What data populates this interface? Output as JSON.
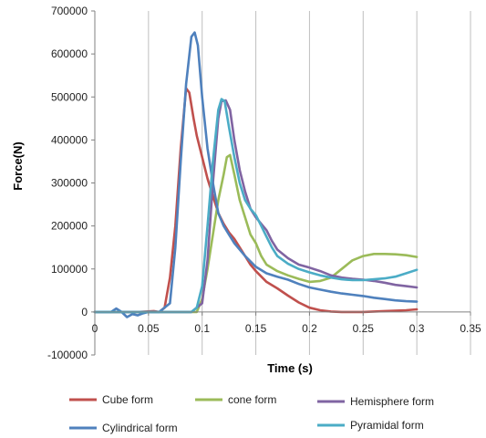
{
  "chart_data": {
    "type": "line",
    "title": "",
    "xlabel": "Time (s)",
    "ylabel": "Force(N)",
    "xlim": [
      0,
      0.35
    ],
    "ylim": [
      -100000,
      700000
    ],
    "x_ticks": [
      0,
      0.05,
      0.1,
      0.15,
      0.2,
      0.25,
      0.3,
      0.35
    ],
    "x_tick_labels": [
      "0",
      "0.05",
      "0.1",
      "0.15",
      "0.2",
      "0.25",
      "0.3",
      "0.35"
    ],
    "y_ticks": [
      -100000,
      0,
      100000,
      200000,
      300000,
      400000,
      500000,
      600000,
      700000
    ],
    "y_tick_labels": [
      "-100000",
      "0",
      "100000",
      "200000",
      "300000",
      "400000",
      "500000",
      "600000",
      "700000"
    ],
    "grid": {
      "vertical": true,
      "horizontal": false
    },
    "legend_position": "bottom",
    "series": [
      {
        "name": "Cube form",
        "color": "#c0504d",
        "points": [
          [
            0,
            0
          ],
          [
            0.04,
            0
          ],
          [
            0.055,
            2000
          ],
          [
            0.06,
            0
          ],
          [
            0.065,
            10000
          ],
          [
            0.07,
            80000
          ],
          [
            0.075,
            200000
          ],
          [
            0.08,
            380000
          ],
          [
            0.085,
            520000
          ],
          [
            0.088,
            510000
          ],
          [
            0.092,
            450000
          ],
          [
            0.095,
            410000
          ],
          [
            0.1,
            360000
          ],
          [
            0.105,
            310000
          ],
          [
            0.11,
            270000
          ],
          [
            0.115,
            230000
          ],
          [
            0.12,
            205000
          ],
          [
            0.125,
            185000
          ],
          [
            0.13,
            170000
          ],
          [
            0.135,
            150000
          ],
          [
            0.14,
            130000
          ],
          [
            0.145,
            110000
          ],
          [
            0.15,
            95000
          ],
          [
            0.16,
            70000
          ],
          [
            0.17,
            55000
          ],
          [
            0.18,
            38000
          ],
          [
            0.19,
            22000
          ],
          [
            0.2,
            10000
          ],
          [
            0.21,
            4000
          ],
          [
            0.22,
            1000
          ],
          [
            0.23,
            0
          ],
          [
            0.25,
            0
          ],
          [
            0.27,
            2000
          ],
          [
            0.29,
            4000
          ],
          [
            0.3,
            6000
          ]
        ]
      },
      {
        "name": "cone form",
        "color": "#9bbb59",
        "points": [
          [
            0,
            0
          ],
          [
            0.05,
            0
          ],
          [
            0.08,
            0
          ],
          [
            0.095,
            0
          ],
          [
            0.1,
            30000
          ],
          [
            0.105,
            100000
          ],
          [
            0.11,
            180000
          ],
          [
            0.115,
            260000
          ],
          [
            0.12,
            320000
          ],
          [
            0.123,
            360000
          ],
          [
            0.126,
            365000
          ],
          [
            0.13,
            320000
          ],
          [
            0.135,
            260000
          ],
          [
            0.14,
            220000
          ],
          [
            0.145,
            180000
          ],
          [
            0.15,
            160000
          ],
          [
            0.155,
            130000
          ],
          [
            0.16,
            110000
          ],
          [
            0.17,
            95000
          ],
          [
            0.18,
            85000
          ],
          [
            0.19,
            77000
          ],
          [
            0.2,
            70000
          ],
          [
            0.21,
            72000
          ],
          [
            0.22,
            80000
          ],
          [
            0.23,
            100000
          ],
          [
            0.24,
            120000
          ],
          [
            0.25,
            130000
          ],
          [
            0.26,
            135000
          ],
          [
            0.27,
            135000
          ],
          [
            0.28,
            134000
          ],
          [
            0.29,
            132000
          ],
          [
            0.3,
            128000
          ]
        ]
      },
      {
        "name": "Hemisphere form",
        "color": "#8064a2",
        "points": [
          [
            0,
            0
          ],
          [
            0.05,
            0
          ],
          [
            0.09,
            0
          ],
          [
            0.1,
            20000
          ],
          [
            0.105,
            120000
          ],
          [
            0.11,
            300000
          ],
          [
            0.115,
            450000
          ],
          [
            0.118,
            490000
          ],
          [
            0.122,
            492000
          ],
          [
            0.126,
            470000
          ],
          [
            0.13,
            400000
          ],
          [
            0.135,
            330000
          ],
          [
            0.14,
            280000
          ],
          [
            0.145,
            240000
          ],
          [
            0.15,
            220000
          ],
          [
            0.155,
            205000
          ],
          [
            0.16,
            190000
          ],
          [
            0.165,
            165000
          ],
          [
            0.17,
            145000
          ],
          [
            0.18,
            125000
          ],
          [
            0.19,
            110000
          ],
          [
            0.2,
            103000
          ],
          [
            0.21,
            95000
          ],
          [
            0.22,
            85000
          ],
          [
            0.23,
            80000
          ],
          [
            0.24,
            77000
          ],
          [
            0.25,
            75000
          ],
          [
            0.26,
            72000
          ],
          [
            0.27,
            68000
          ],
          [
            0.28,
            63000
          ],
          [
            0.29,
            60000
          ],
          [
            0.3,
            57000
          ]
        ]
      },
      {
        "name": "Cylindrical form",
        "color": "#4f81bd",
        "points": [
          [
            0,
            0
          ],
          [
            0.015,
            0
          ],
          [
            0.02,
            8000
          ],
          [
            0.025,
            0
          ],
          [
            0.03,
            -12000
          ],
          [
            0.035,
            -5000
          ],
          [
            0.04,
            -8000
          ],
          [
            0.045,
            -3000
          ],
          [
            0.05,
            0
          ],
          [
            0.06,
            0
          ],
          [
            0.07,
            20000
          ],
          [
            0.075,
            150000
          ],
          [
            0.08,
            350000
          ],
          [
            0.085,
            530000
          ],
          [
            0.09,
            640000
          ],
          [
            0.093,
            650000
          ],
          [
            0.096,
            620000
          ],
          [
            0.1,
            500000
          ],
          [
            0.105,
            380000
          ],
          [
            0.11,
            300000
          ],
          [
            0.115,
            230000
          ],
          [
            0.12,
            200000
          ],
          [
            0.125,
            180000
          ],
          [
            0.13,
            160000
          ],
          [
            0.14,
            130000
          ],
          [
            0.15,
            105000
          ],
          [
            0.16,
            90000
          ],
          [
            0.17,
            82000
          ],
          [
            0.18,
            75000
          ],
          [
            0.19,
            65000
          ],
          [
            0.2,
            57000
          ],
          [
            0.21,
            52000
          ],
          [
            0.22,
            47000
          ],
          [
            0.23,
            43000
          ],
          [
            0.24,
            40000
          ],
          [
            0.25,
            37000
          ],
          [
            0.26,
            33000
          ],
          [
            0.27,
            30000
          ],
          [
            0.28,
            27000
          ],
          [
            0.29,
            25000
          ],
          [
            0.3,
            24000
          ]
        ]
      },
      {
        "name": "Pyramidal form",
        "color": "#4bacc6",
        "points": [
          [
            0,
            0
          ],
          [
            0.05,
            0
          ],
          [
            0.09,
            0
          ],
          [
            0.095,
            10000
          ],
          [
            0.1,
            60000
          ],
          [
            0.105,
            200000
          ],
          [
            0.11,
            350000
          ],
          [
            0.115,
            470000
          ],
          [
            0.118,
            495000
          ],
          [
            0.121,
            490000
          ],
          [
            0.125,
            430000
          ],
          [
            0.13,
            360000
          ],
          [
            0.135,
            300000
          ],
          [
            0.14,
            260000
          ],
          [
            0.145,
            240000
          ],
          [
            0.15,
            225000
          ],
          [
            0.155,
            200000
          ],
          [
            0.16,
            175000
          ],
          [
            0.165,
            150000
          ],
          [
            0.17,
            130000
          ],
          [
            0.18,
            112000
          ],
          [
            0.19,
            100000
          ],
          [
            0.2,
            92000
          ],
          [
            0.21,
            85000
          ],
          [
            0.22,
            80000
          ],
          [
            0.23,
            76000
          ],
          [
            0.24,
            74000
          ],
          [
            0.25,
            74000
          ],
          [
            0.26,
            76000
          ],
          [
            0.27,
            78000
          ],
          [
            0.28,
            82000
          ],
          [
            0.29,
            90000
          ],
          [
            0.3,
            98000
          ]
        ]
      }
    ]
  }
}
